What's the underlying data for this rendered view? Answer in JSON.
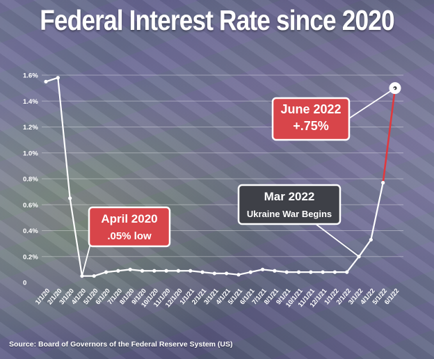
{
  "title": "Federal Interest Rate since 2020",
  "source": "Source: Board of Governors of the Federal Reserve System (US)",
  "colors": {
    "line": "#ffffff",
    "highlight_segment": "#e0393e",
    "annotation_red": "#d8454a",
    "annotation_dark": "#3e4047"
  },
  "chart_data": {
    "type": "line",
    "title": "Federal Interest Rate since 2020",
    "xlabel": "",
    "ylabel": "",
    "ylim": [
      0,
      1.6
    ],
    "yticks": [
      "0",
      "0.2%",
      "0.4%",
      "0.6%",
      "0.8%",
      "1.0%",
      "1.2%",
      "1.4%",
      "1.6%"
    ],
    "grid": true,
    "categories": [
      "1/1/20",
      "2/1/20",
      "3/1/20",
      "4/1/20",
      "5/1/20",
      "6/1/20",
      "7/1/20",
      "8/1/20",
      "9/1/20",
      "10/1/20",
      "11/1/20",
      "12/1/20",
      "1/1/21",
      "2/1/21",
      "3/1/21",
      "4/1/21",
      "5/1/21",
      "6/1/21",
      "7/1/21",
      "8/1/21",
      "9/1/21",
      "10/1/21",
      "11/1/21",
      "12/1/21",
      "1/1/22",
      "2/1/22",
      "3/1/22",
      "4/1/22",
      "5/1/22",
      "6/1/22"
    ],
    "series": [
      {
        "values": [
          1.55,
          1.58,
          0.65,
          0.05,
          0.05,
          0.08,
          0.09,
          0.1,
          0.09,
          0.09,
          0.09,
          0.09,
          0.09,
          0.08,
          0.07,
          0.07,
          0.06,
          0.08,
          0.1,
          0.09,
          0.08,
          0.08,
          0.08,
          0.08,
          0.08,
          0.08,
          0.2,
          0.33,
          0.77,
          1.5
        ]
      }
    ],
    "highlight_last_segment": true,
    "annotations": [
      {
        "id": "april2020",
        "lines": [
          "April 2020",
          ".05% low"
        ],
        "style": "red",
        "target_index": 3
      },
      {
        "id": "mar2022",
        "lines": [
          "Mar 2022",
          "Ukraine War Begins"
        ],
        "style": "dark",
        "target_index": 26
      },
      {
        "id": "june2022",
        "lines": [
          "June 2022",
          "+.75%"
        ],
        "style": "red",
        "target_index": 29
      }
    ]
  }
}
